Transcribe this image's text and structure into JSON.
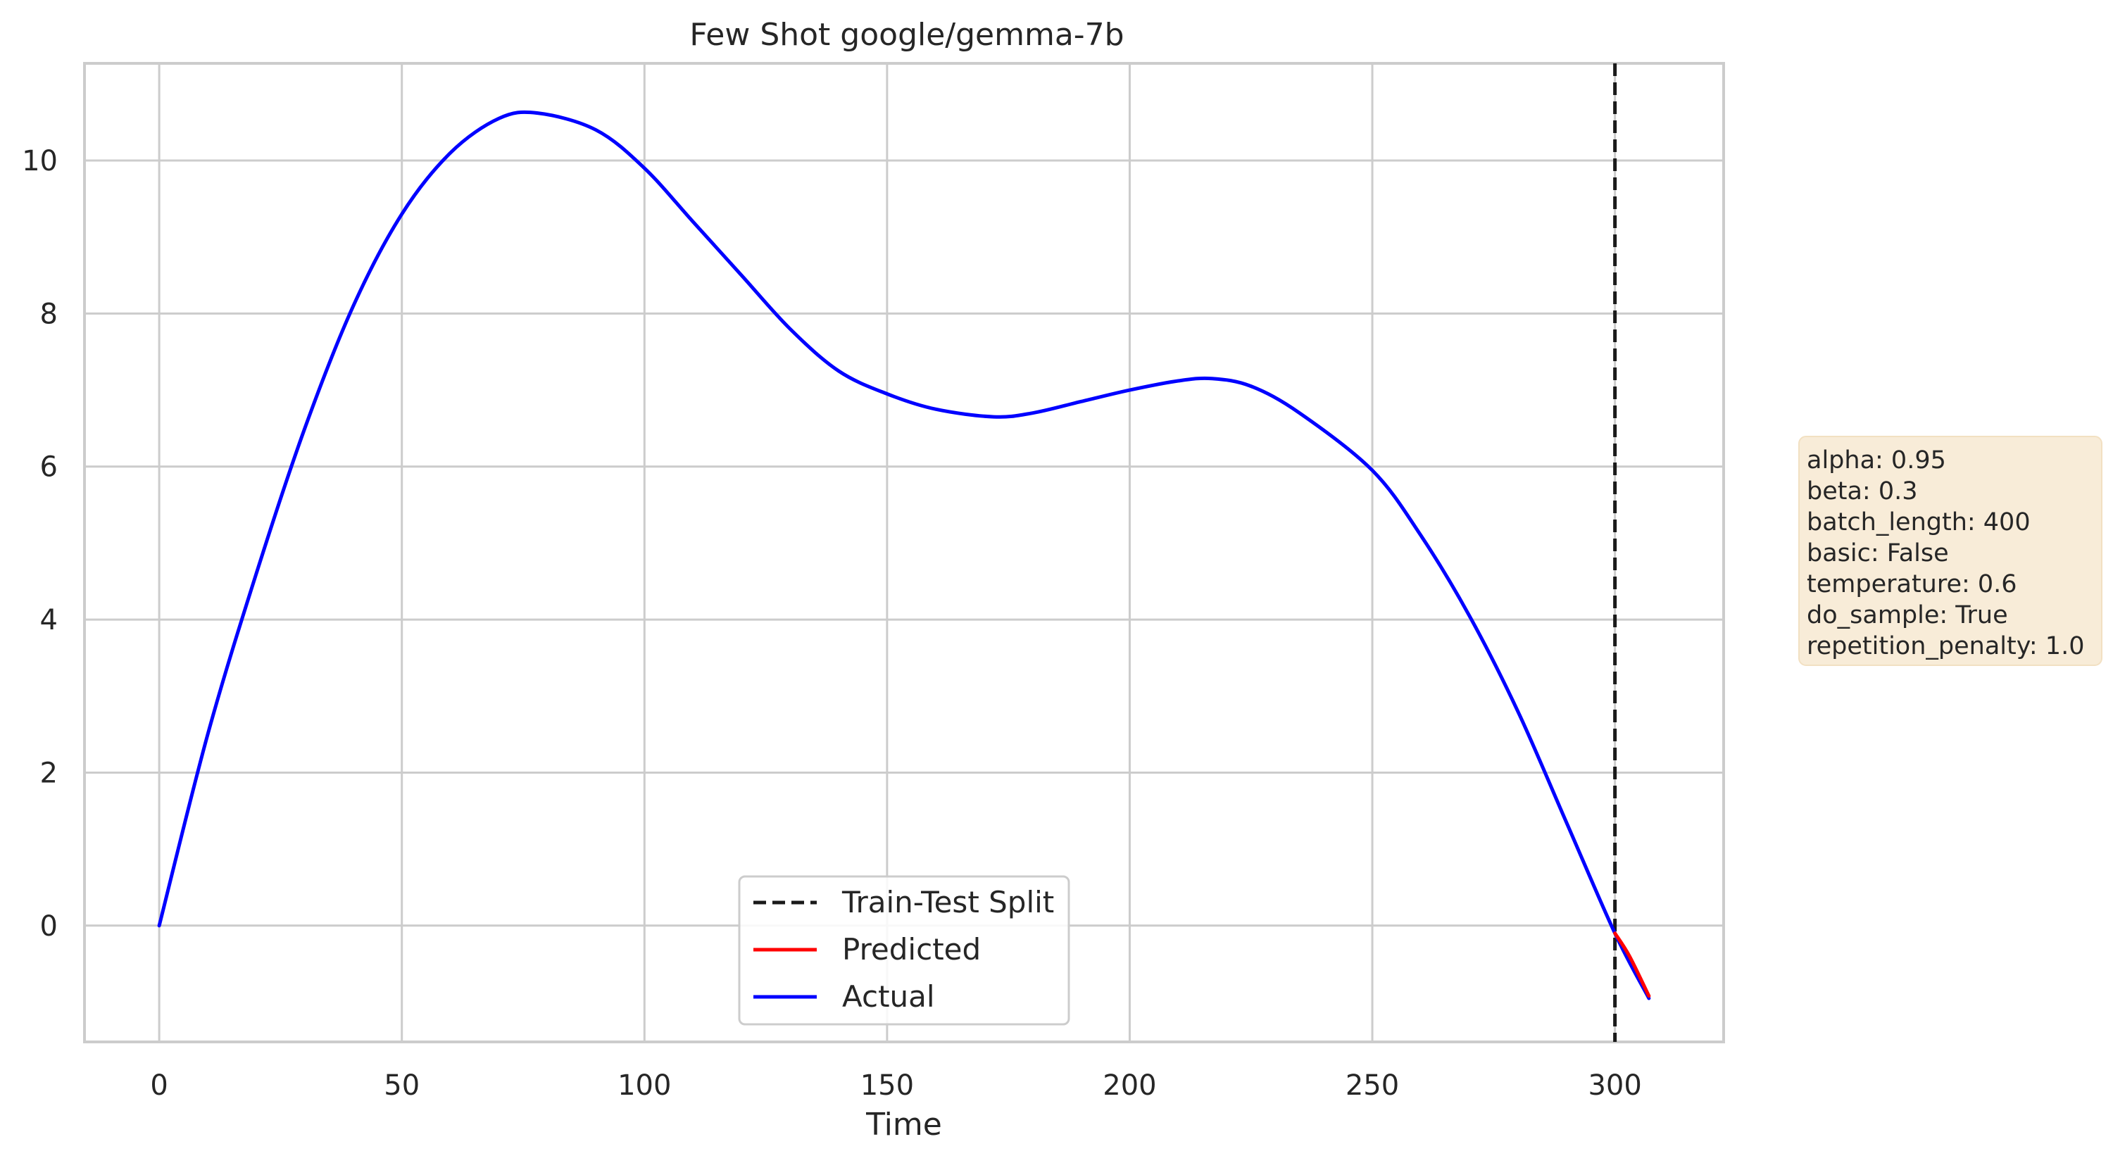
{
  "chart_data": {
    "type": "line",
    "title": "Few Shot google/gemma-7b",
    "xlabel": "Time",
    "ylabel": "",
    "xlim": [
      -15.4,
      322.4
    ],
    "ylim": [
      -1.52,
      11.27
    ],
    "xticks": [
      0,
      50,
      100,
      150,
      200,
      250,
      300
    ],
    "yticks": [
      0,
      2,
      4,
      6,
      8,
      10
    ],
    "grid": true,
    "legend_position": "lower-center",
    "legend": [
      {
        "label": "Train-Test Split",
        "color": "#1a1a1a",
        "style": "dashed"
      },
      {
        "label": "Predicted",
        "color": "#ff0000",
        "style": "solid"
      },
      {
        "label": "Actual",
        "color": "#0000ff",
        "style": "solid"
      }
    ],
    "split_x": 300,
    "series": [
      {
        "name": "Actual",
        "color": "#0000ff",
        "x": [
          0,
          10,
          20,
          30,
          40,
          50,
          60,
          70,
          78,
          90,
          100,
          110,
          120,
          130,
          140,
          150,
          160,
          172,
          180,
          190,
          200,
          210,
          217,
          225,
          235,
          250,
          260,
          270,
          280,
          290,
          300,
          307
        ],
        "y": [
          0,
          2.5,
          4.6,
          6.5,
          8.1,
          9.3,
          10.1,
          10.55,
          10.62,
          10.4,
          9.9,
          9.2,
          8.5,
          7.8,
          7.25,
          6.95,
          6.75,
          6.65,
          6.7,
          6.85,
          7.0,
          7.12,
          7.15,
          7.05,
          6.7,
          5.95,
          5.1,
          4.05,
          2.8,
          1.35,
          -0.1,
          -0.95
        ]
      },
      {
        "name": "Predicted",
        "color": "#ff0000",
        "x": [
          300,
          303,
          307
        ],
        "y": [
          -0.1,
          -0.4,
          -0.92
        ]
      }
    ]
  },
  "info_box": {
    "lines": [
      "alpha: 0.95",
      "beta: 0.3",
      "batch_length: 400",
      "basic: False",
      "temperature: 0.6",
      "do_sample: True",
      "repetition_penalty: 1.0"
    ],
    "background": "#f8ecd8"
  }
}
